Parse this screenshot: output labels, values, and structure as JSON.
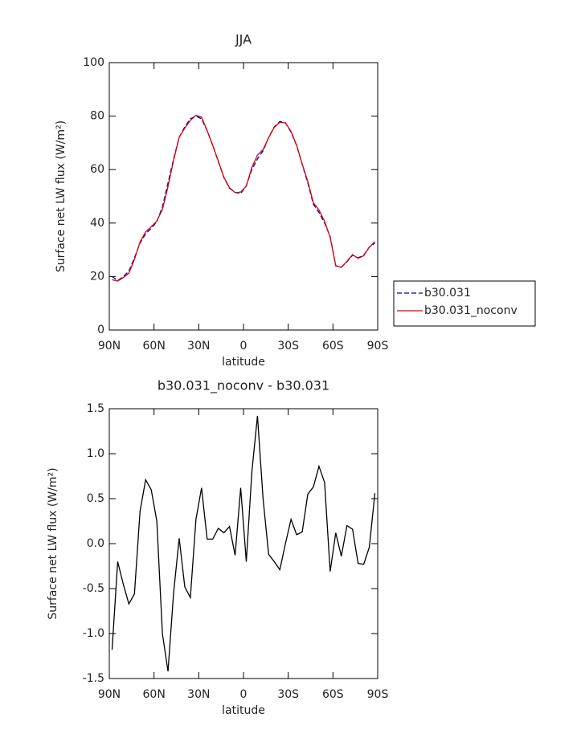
{
  "chart_data": [
    {
      "type": "line",
      "title": "JJA",
      "xlabel": "latitude",
      "ylabel": "Surface net LW flux (W/m²)",
      "x": [
        88.125,
        84.375,
        80.625,
        76.875,
        73.125,
        69.375,
        65.625,
        61.875,
        58.125,
        54.375,
        50.625,
        46.875,
        43.125,
        39.375,
        35.625,
        31.875,
        28.125,
        24.375,
        20.625,
        16.875,
        13.125,
        9.375,
        5.625,
        1.875,
        -1.875,
        -5.625,
        -9.375,
        -13.125,
        -16.875,
        -20.625,
        -24.375,
        -28.125,
        -31.875,
        -35.625,
        -39.375,
        -43.125,
        -46.875,
        -50.625,
        -54.375,
        -58.125,
        -61.875,
        -65.625,
        -69.375,
        -73.125,
        -76.875,
        -80.625,
        -84.375,
        -88.125
      ],
      "series": [
        {
          "name": "b30.031",
          "color": "#0000cc",
          "linestyle": "dashed",
          "values": [
            20,
            18.5,
            20,
            22,
            27,
            32.5,
            36,
            38,
            40.5,
            46,
            55,
            64,
            72,
            76,
            79,
            80,
            79,
            74.5,
            69,
            63,
            57,
            53,
            51.5,
            51,
            54,
            60,
            64,
            67,
            72,
            76,
            78,
            77.5,
            74,
            69,
            62,
            55,
            47,
            44,
            40,
            35,
            24,
            23.5,
            25.5,
            28,
            27,
            28,
            31,
            32.5
          ]
        },
        {
          "name": "b30.031_noconv",
          "color": "#dd0000",
          "linestyle": "solid",
          "values": [
            18.8,
            18.3,
            19.6,
            21.3,
            26.4,
            32.9,
            36.7,
            38.6,
            40.8,
            45,
            53.6,
            63.5,
            72.1,
            75.5,
            78.4,
            80.3,
            79.6,
            74.6,
            69.1,
            63.2,
            57.1,
            53.2,
            51.4,
            51.6,
            53.8,
            60.8,
            65.4,
            67.5,
            71.9,
            75.8,
            77.7,
            77.5,
            74.3,
            69.1,
            62.1,
            55.6,
            47.6,
            44.9,
            40.7,
            34.7,
            24.1,
            23.4,
            25.7,
            28.2,
            26.8,
            27.8,
            31,
            33.1
          ]
        }
      ],
      "xlim": [
        90,
        -90
      ],
      "xticks": [
        {
          "value": 90,
          "label": "90N"
        },
        {
          "value": 60,
          "label": "60N"
        },
        {
          "value": 30,
          "label": "30N"
        },
        0,
        {
          "value": -30,
          "label": "30S"
        },
        {
          "value": -60,
          "label": "60S"
        },
        {
          "value": -90,
          "label": "90S"
        }
      ],
      "ylim": [
        0,
        100
      ],
      "yticks": [
        0,
        20,
        40,
        60,
        80,
        100
      ],
      "legend": "right"
    },
    {
      "type": "line",
      "title": "b30.031_noconv - b30.031",
      "xlabel": "latitude",
      "ylabel": "Surface net LW flux (W/m²)",
      "x": [
        88.125,
        84.375,
        80.625,
        76.875,
        73.125,
        69.375,
        65.625,
        61.875,
        58.125,
        54.375,
        50.625,
        46.875,
        43.125,
        39.375,
        35.625,
        31.875,
        28.125,
        24.375,
        20.625,
        16.875,
        13.125,
        9.375,
        5.625,
        1.875,
        -1.875,
        -5.625,
        -9.375,
        -13.125,
        -16.875,
        -20.625,
        -24.375,
        -28.125,
        -31.875,
        -35.625,
        -39.375,
        -43.125,
        -46.875,
        -50.625,
        -54.375,
        -58.125,
        -61.875,
        -65.625,
        -69.375,
        -73.125,
        -76.875,
        -80.625,
        -84.375,
        -88.125
      ],
      "values": [
        -1.18,
        -0.2,
        -0.45,
        -0.67,
        -0.56,
        0.36,
        0.71,
        0.6,
        0.25,
        -1.0,
        -1.42,
        -0.55,
        0.06,
        -0.48,
        -0.6,
        0.27,
        0.62,
        0.05,
        0.05,
        0.17,
        0.12,
        0.19,
        -0.13,
        0.62,
        -0.2,
        0.8,
        1.42,
        0.5,
        -0.12,
        -0.2,
        -0.29,
        0.0,
        0.27,
        0.1,
        0.13,
        0.55,
        0.63,
        0.86,
        0.68,
        -0.31,
        0.12,
        -0.14,
        0.2,
        0.16,
        -0.22,
        -0.23,
        -0.04,
        0.56
      ],
      "color": "#000000",
      "xlim": [
        90,
        -90
      ],
      "xticks": [
        {
          "value": 90,
          "label": "90N"
        },
        {
          "value": 60,
          "label": "60N"
        },
        {
          "value": 30,
          "label": "30N"
        },
        0,
        {
          "value": -30,
          "label": "30S"
        },
        {
          "value": -60,
          "label": "60S"
        },
        {
          "value": -90,
          "label": "90S"
        }
      ],
      "ylim": [
        -1.5,
        1.5
      ],
      "yticks": [
        -1.5,
        {
          "value": -1.0,
          "label": "-1.0"
        },
        -0.5,
        {
          "value": 0,
          "label": "0.0"
        },
        0.5,
        {
          "value": 1.0,
          "label": "1.0"
        },
        1.5
      ]
    }
  ]
}
